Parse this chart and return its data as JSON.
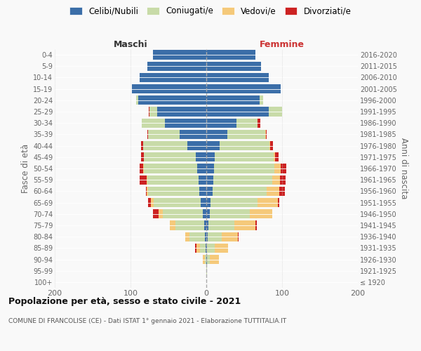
{
  "age_groups": [
    "100+",
    "95-99",
    "90-94",
    "85-89",
    "80-84",
    "75-79",
    "70-74",
    "65-69",
    "60-64",
    "55-59",
    "50-54",
    "45-49",
    "40-44",
    "35-39",
    "30-34",
    "25-29",
    "20-24",
    "15-19",
    "10-14",
    "5-9",
    "0-4"
  ],
  "birth_years": [
    "≤ 1920",
    "1921-1925",
    "1926-1930",
    "1931-1935",
    "1936-1940",
    "1941-1945",
    "1946-1950",
    "1951-1955",
    "1956-1960",
    "1961-1965",
    "1966-1970",
    "1971-1975",
    "1976-1980",
    "1981-1985",
    "1986-1990",
    "1991-1995",
    "1996-2000",
    "2001-2005",
    "2006-2010",
    "2011-2015",
    "2016-2020"
  ],
  "maschi": {
    "celibe": [
      0,
      0,
      0,
      1,
      2,
      3,
      5,
      7,
      9,
      10,
      12,
      14,
      25,
      35,
      55,
      65,
      90,
      98,
      88,
      78,
      70
    ],
    "coniugato": [
      0,
      0,
      2,
      7,
      20,
      38,
      52,
      62,
      68,
      68,
      70,
      68,
      58,
      42,
      30,
      10,
      3,
      0,
      0,
      0,
      0
    ],
    "vedovo": [
      0,
      0,
      3,
      5,
      6,
      7,
      6,
      4,
      2,
      1,
      1,
      0,
      0,
      0,
      0,
      0,
      0,
      0,
      0,
      0,
      0
    ],
    "divorziato": [
      0,
      0,
      0,
      2,
      0,
      0,
      7,
      4,
      1,
      9,
      5,
      4,
      3,
      1,
      0,
      1,
      0,
      0,
      0,
      0,
      0
    ]
  },
  "femmine": {
    "nubile": [
      0,
      0,
      1,
      1,
      2,
      3,
      5,
      6,
      8,
      9,
      10,
      11,
      18,
      28,
      40,
      82,
      70,
      98,
      82,
      72,
      65
    ],
    "coniugata": [
      0,
      1,
      4,
      10,
      18,
      34,
      52,
      62,
      72,
      78,
      80,
      78,
      65,
      50,
      28,
      18,
      5,
      0,
      0,
      0,
      0
    ],
    "vedova": [
      0,
      0,
      12,
      18,
      22,
      28,
      30,
      26,
      16,
      10,
      8,
      2,
      1,
      1,
      0,
      0,
      0,
      0,
      0,
      0,
      0
    ],
    "divorziata": [
      0,
      0,
      0,
      0,
      1,
      2,
      0,
      2,
      8,
      8,
      8,
      4,
      4,
      1,
      3,
      0,
      0,
      0,
      0,
      0,
      0
    ]
  },
  "colors": {
    "celibe": "#3b6ea8",
    "coniugato": "#c8dba8",
    "vedovo": "#f5c97a",
    "divorziato": "#cc2222"
  },
  "legend_labels": [
    "Celibi/Nubili",
    "Coniugati/e",
    "Vedovi/e",
    "Divorziati/e"
  ],
  "title": "Popolazione per età, sesso e stato civile - 2021",
  "subtitle": "COMUNE DI FRANCOLISE (CE) - Dati ISTAT 1° gennaio 2021 - Elaborazione TUTTITALIA.IT",
  "xlabel_left": "Maschi",
  "xlabel_right": "Femmine",
  "ylabel_left": "Fasce di età",
  "ylabel_right": "Anni di nascita",
  "xlim": 200,
  "background_color": "#f9f9f9"
}
